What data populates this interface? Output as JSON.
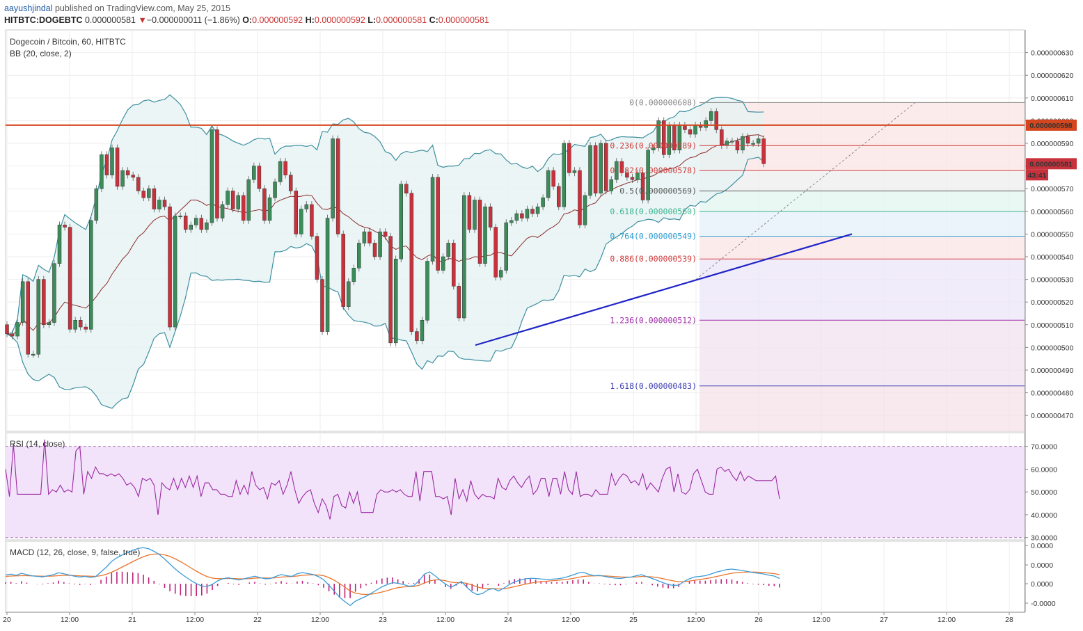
{
  "header": {
    "publisher": "aayushjindal",
    "published_text": "published on TradingView.com, May 25, 2015",
    "symbol": "HITBTC:DOGEBTC",
    "last": "0.000000581",
    "change_arrow": "▼",
    "change": "−0.000000011 (−1.86%)",
    "o_label": "O:",
    "o_value": "0.000000592",
    "h_label": "H:",
    "h_value": "0.000000592",
    "l_label": "L:",
    "l_value": "0.000000581",
    "c_label": "C:",
    "c_value": "0.000000581"
  },
  "chart_title": "Dogecoin / Bitcoin, 60, HITBTC",
  "bb_label": "BB (20, close, 2)",
  "rsi_label": "RSI (14, close)",
  "macd_label": "MACD (12, 26, close, 9, false, true)",
  "colors": {
    "up": "#3c8c5a",
    "down": "#c8323c",
    "bb": "#3d8fa0",
    "bb_fill": "#e6f3f3",
    "basis": "#8b2a2a",
    "resistance": "#d4461e",
    "trend": "#1f24c8",
    "rsi": "#9b2aa0",
    "rsi_band": "#f2e3fb",
    "macd": "#3a9ad8",
    "signal": "#e8732b",
    "hist": "#c0207a"
  },
  "chart_data": [
    {
      "type": "candlestick",
      "title": "Dogecoin / Bitcoin, 60, HITBTC",
      "y_ticks": [
        "0.000000470",
        "0.000000480",
        "0.000000490",
        "0.000000500",
        "0.000000510",
        "0.000000520",
        "0.000000530",
        "0.000000540",
        "0.000000550",
        "0.000000560",
        "0.000000570",
        "0.000000580",
        "0.000000590",
        "0.000000600",
        "0.000000610",
        "0.000000620",
        "0.000000630"
      ],
      "ylim": [
        4.63e-07,
        6.4e-07
      ],
      "x_ticks": [
        "20",
        "12:00",
        "21",
        "12:00",
        "22",
        "12:00",
        "23",
        "12:00",
        "24",
        "12:00",
        "25",
        "12:00",
        "26",
        "12:00",
        "27",
        "12:00",
        "28"
      ],
      "price_tags": [
        {
          "label": "0.000000598",
          "value": 5.98e-07,
          "color": "#d4461e"
        },
        {
          "label": "0.000000581",
          "value": 5.81e-07,
          "color": "#c8323c"
        },
        {
          "label": "43:41",
          "color": "#c8323c"
        }
      ],
      "resistance": 5.98e-07,
      "trendline": {
        "start": [
          "23 10:00",
          5.01e-07
        ],
        "end": [
          "26 09:00",
          5.5e-07
        ]
      },
      "fibonacci": [
        {
          "label": "0(0.000000608)",
          "value": 6.08e-07,
          "color": "#888888"
        },
        {
          "label": "0.236(0.000000589)",
          "value": 5.89e-07,
          "color": "#d23c3c"
        },
        {
          "label": "0.382(0.000000578)",
          "value": 5.78e-07,
          "color": "#d23c3c"
        },
        {
          "label": "0.5(0.000000569)",
          "value": 5.69e-07,
          "color": "#555555"
        },
        {
          "label": "0.618(0.000000560)",
          "value": 5.6e-07,
          "color": "#3cb48c"
        },
        {
          "label": "0.764(0.000000549)",
          "value": 5.49e-07,
          "color": "#2a9ad0"
        },
        {
          "label": "0.886(0.000000539)",
          "value": 5.39e-07,
          "color": "#d23c3c"
        },
        {
          "label": "1.236(0.000000512)",
          "value": 5.12e-07,
          "color": "#a030a8"
        },
        {
          "label": "1.618(0.000000483)",
          "value": 4.83e-07,
          "color": "#3c3cb4"
        }
      ],
      "closes": [
        5.06e-07,
        5.05e-07,
        5.11e-07,
        5.29e-07,
        4.97e-07,
        4.97e-07,
        5.3e-07,
        5.1e-07,
        5.11e-07,
        5.37e-07,
        5.54e-07,
        5.53e-07,
        5.08e-07,
        5.12e-07,
        5.09e-07,
        5.08e-07,
        5.56e-07,
        5.7e-07,
        5.85e-07,
        5.76e-07,
        5.88e-07,
        5.71e-07,
        5.78e-07,
        5.76e-07,
        5.75e-07,
        5.69e-07,
        5.66e-07,
        5.7e-07,
        5.61e-07,
        5.65e-07,
        5.62e-07,
        5.09e-07,
        5.58e-07,
        5.58e-07,
        5.52e-07,
        5.54e-07,
        5.57e-07,
        5.52e-07,
        5.55e-07,
        5.96e-07,
        5.57e-07,
        5.63e-07,
        5.69e-07,
        5.61e-07,
        5.67e-07,
        5.56e-07,
        5.74e-07,
        5.8e-07,
        5.7e-07,
        5.56e-07,
        5.66e-07,
        5.73e-07,
        5.82e-07,
        5.76e-07,
        5.69e-07,
        5.5e-07,
        5.61e-07,
        5.63e-07,
        5.49e-07,
        5.3e-07,
        5.07e-07,
        5.57e-07,
        5.92e-07,
        5.5e-07,
        5.18e-07,
        5.29e-07,
        5.35e-07,
        5.46e-07,
        5.51e-07,
        5.46e-07,
        5.4e-07,
        5.51e-07,
        5.49e-07,
        5.02e-07,
        5.39e-07,
        5.72e-07,
        5.68e-07,
        5.07e-07,
        5.03e-07,
        5.12e-07,
        5.38e-07,
        5.75e-07,
        5.34e-07,
        5.4e-07,
        5.46e-07,
        5.27e-07,
        5.13e-07,
        5.67e-07,
        5.52e-07,
        5.65e-07,
        5.37e-07,
        5.62e-07,
        5.53e-07,
        5.31e-07,
        5.34e-07,
        5.55e-07,
        5.56e-07,
        5.59e-07,
        5.57e-07,
        5.61e-07,
        5.59e-07,
        5.62e-07,
        5.66e-07,
        5.78e-07,
        5.71e-07,
        5.62e-07,
        5.9e-07,
        5.77e-07,
        5.78e-07,
        5.54e-07,
        5.67e-07,
        5.89e-07,
        5.68e-07,
        5.9e-07,
        5.69e-07,
        5.74e-07,
        5.82e-07,
        5.77e-07,
        5.75e-07,
        5.74e-07,
        5.77e-07,
        5.65e-07,
        5.87e-07,
        5.88e-07,
        6e-07,
        5.85e-07,
        5.98e-07,
        5.87e-07,
        5.98e-07,
        5.96e-07,
        5.94e-07,
        5.98e-07,
        5.97e-07,
        6e-07,
        6.04e-07,
        5.96e-07,
        5.89e-07,
        5.91e-07,
        5.91e-07,
        5.87e-07,
        5.93e-07,
        5.9e-07,
        5.9e-07,
        5.92e-07,
        5.81e-07
      ],
      "opens": [
        5.1e-07,
        5.06e-07,
        5.05e-07,
        5.11e-07,
        5.29e-07,
        4.97e-07,
        4.97e-07,
        5.3e-07,
        5.1e-07,
        5.11e-07,
        5.37e-07,
        5.54e-07,
        5.53e-07,
        5.08e-07,
        5.12e-07,
        5.09e-07,
        5.08e-07,
        5.56e-07,
        5.7e-07,
        5.85e-07,
        5.76e-07,
        5.88e-07,
        5.71e-07,
        5.78e-07,
        5.76e-07,
        5.75e-07,
        5.69e-07,
        5.66e-07,
        5.7e-07,
        5.61e-07,
        5.65e-07,
        5.62e-07,
        5.09e-07,
        5.58e-07,
        5.58e-07,
        5.52e-07,
        5.54e-07,
        5.57e-07,
        5.52e-07,
        5.55e-07,
        5.96e-07,
        5.57e-07,
        5.63e-07,
        5.69e-07,
        5.61e-07,
        5.67e-07,
        5.56e-07,
        5.74e-07,
        5.8e-07,
        5.7e-07,
        5.56e-07,
        5.66e-07,
        5.73e-07,
        5.82e-07,
        5.76e-07,
        5.69e-07,
        5.5e-07,
        5.61e-07,
        5.63e-07,
        5.49e-07,
        5.3e-07,
        5.07e-07,
        5.57e-07,
        5.92e-07,
        5.5e-07,
        5.18e-07,
        5.29e-07,
        5.35e-07,
        5.46e-07,
        5.51e-07,
        5.46e-07,
        5.4e-07,
        5.51e-07,
        5.49e-07,
        5.02e-07,
        5.39e-07,
        5.72e-07,
        5.68e-07,
        5.07e-07,
        5.03e-07,
        5.12e-07,
        5.38e-07,
        5.75e-07,
        5.34e-07,
        5.4e-07,
        5.46e-07,
        5.27e-07,
        5.13e-07,
        5.67e-07,
        5.52e-07,
        5.65e-07,
        5.37e-07,
        5.62e-07,
        5.53e-07,
        5.31e-07,
        5.34e-07,
        5.55e-07,
        5.56e-07,
        5.59e-07,
        5.57e-07,
        5.61e-07,
        5.59e-07,
        5.62e-07,
        5.66e-07,
        5.78e-07,
        5.71e-07,
        5.62e-07,
        5.9e-07,
        5.77e-07,
        5.78e-07,
        5.54e-07,
        5.67e-07,
        5.89e-07,
        5.68e-07,
        5.9e-07,
        5.69e-07,
        5.74e-07,
        5.82e-07,
        5.77e-07,
        5.75e-07,
        5.74e-07,
        5.77e-07,
        5.65e-07,
        5.87e-07,
        5.88e-07,
        6e-07,
        5.85e-07,
        5.98e-07,
        5.87e-07,
        5.98e-07,
        5.96e-07,
        5.94e-07,
        5.98e-07,
        5.97e-07,
        6e-07,
        6.04e-07,
        5.96e-07,
        5.89e-07,
        5.91e-07,
        5.91e-07,
        5.87e-07,
        5.93e-07,
        5.9e-07,
        5.9e-07,
        5.92e-07
      ]
    },
    {
      "type": "line",
      "title": "RSI (14, close)",
      "y_ticks": [
        "30.0000",
        "40.0000",
        "50.0000",
        "60.0000",
        "70.0000"
      ],
      "ylim": [
        29,
        76
      ],
      "bands": [
        30,
        70
      ],
      "values": [
        60,
        48,
        71,
        49,
        49,
        49,
        49,
        49,
        49,
        49,
        73,
        49,
        51,
        50,
        53,
        50,
        51,
        50,
        68,
        70,
        49,
        59,
        56,
        61,
        58,
        58,
        57,
        58,
        57,
        58,
        56,
        53,
        54,
        52,
        48,
        56,
        55,
        56,
        53,
        40,
        54,
        52,
        51,
        56,
        51,
        56,
        52,
        57,
        52,
        57,
        48,
        54,
        54,
        51,
        51,
        49,
        49,
        48,
        48,
        55,
        49,
        53,
        49,
        59,
        53,
        51,
        52,
        47,
        54,
        53,
        55,
        49,
        53,
        59,
        51,
        45,
        48,
        50,
        51,
        45,
        41,
        47,
        44,
        38,
        48,
        49,
        44,
        43,
        50,
        45,
        50,
        41,
        41,
        41,
        41,
        49,
        51,
        50,
        50,
        51,
        50,
        51,
        49,
        48,
        48,
        59,
        46,
        59,
        59,
        59,
        48,
        48,
        47,
        48,
        40,
        56,
        47,
        51,
        46,
        55,
        49,
        47,
        49,
        48,
        48,
        47,
        56,
        52,
        51,
        55,
        57,
        54,
        52,
        55,
        57,
        49,
        51,
        56,
        56,
        48,
        56,
        56,
        49,
        59,
        51,
        49,
        59,
        48,
        49,
        49,
        48,
        51,
        49,
        49,
        49,
        58,
        53,
        56,
        58,
        57,
        54,
        55,
        53,
        58,
        51,
        54,
        52,
        50,
        56,
        60,
        61,
        50,
        58,
        50,
        49,
        51,
        58,
        60,
        55,
        50,
        49,
        49,
        60,
        61,
        59,
        60,
        57,
        55,
        59,
        55,
        57,
        56,
        55,
        55,
        55,
        55,
        55,
        57,
        47
      ]
    },
    {
      "type": "line",
      "title": "MACD (12, 26, close, 9, false, true)",
      "y_ticks": [
        "-0.0000",
        "0.0000",
        "0.0000",
        "0.0000",
        "0.0000"
      ],
      "series": [
        {
          "kind": "macd",
          "values": [
            5.0,
            5.5,
            4.8,
            6.0,
            5.2,
            4.5,
            4.2,
            3.9,
            4.6,
            5.1,
            6.3,
            5.7,
            5.0,
            4.3,
            3.8,
            4.2,
            3.6,
            4.1,
            6.8,
            9.5,
            12.8,
            14.9,
            16.5,
            17.8,
            19.2,
            20.3,
            20.7,
            20.1,
            18.6,
            16.8,
            14.2,
            11.3,
            8.5,
            6.0,
            3.8,
            1.8,
            0.0,
            -1.3,
            -1.6,
            -0.4,
            1.6,
            2.9,
            3.4,
            2.7,
            2.1,
            2.8,
            3.6,
            4.3,
            3.5,
            2.8,
            3.0,
            4.2,
            5.3,
            4.6,
            4.2,
            5.7,
            6.4,
            5.8,
            5.3,
            4.1,
            2.3,
            -0.9,
            -4.3,
            -7.8,
            -10.3,
            -12.5,
            -10.0,
            -8.6,
            -7.2,
            -5.5,
            -3.6,
            -1.8,
            -0.5,
            0.6,
            0.2,
            -0.4,
            -1.4,
            -1.2,
            1.7,
            5.5,
            6.8,
            4.6,
            2.0,
            -0.2,
            -2.1,
            -0.5,
            1.3,
            -2.0,
            -4.8,
            -6.3,
            -5.6,
            -3.5,
            -2.8,
            -4.2,
            -2.6,
            -0.5,
            1.0,
            2.0,
            2.8,
            3.1,
            3.0,
            2.7,
            2.5,
            2.6,
            2.8,
            3.2,
            4.0,
            5.0,
            6.1,
            6.6,
            5.4,
            4.6,
            4.8,
            4.2,
            3.6,
            3.2,
            3.0,
            3.5,
            3.8,
            4.6,
            5.2,
            4.0,
            3.0,
            1.8,
            0.6,
            -0.5,
            -1.0,
            -0.8,
            1.3,
            2.8,
            3.9,
            4.2,
            4.6,
            5.5,
            6.6,
            7.3,
            8.1,
            8.4,
            8.0,
            7.6,
            7.0,
            6.4,
            6.0,
            5.6,
            4.9,
            4.4,
            3.0
          ]
        },
        {
          "kind": "signal",
          "values": [
            4.2,
            4.4,
            4.5,
            4.6,
            4.6,
            4.5,
            4.4,
            4.3,
            4.3,
            4.4,
            4.6,
            4.8,
            4.8,
            4.7,
            4.5,
            4.4,
            4.3,
            4.2,
            4.6,
            5.4,
            6.6,
            8.0,
            9.6,
            11.1,
            12.7,
            14.2,
            15.5,
            16.5,
            17.0,
            17.1,
            16.6,
            15.7,
            14.3,
            12.7,
            10.9,
            9.0,
            7.2,
            5.5,
            4.1,
            3.2,
            2.9,
            2.9,
            3.0,
            3.0,
            2.8,
            2.8,
            2.9,
            3.2,
            3.3,
            3.3,
            3.2,
            3.4,
            3.8,
            4.0,
            4.1,
            4.4,
            4.8,
            5.0,
            5.1,
            5.0,
            4.6,
            3.5,
            2.0,
            0.1,
            -2.0,
            -4.2,
            -5.4,
            -6.0,
            -6.2,
            -6.0,
            -5.5,
            -4.8,
            -4.0,
            -3.0,
            -2.3,
            -1.9,
            -1.7,
            -1.6,
            -0.9,
            0.4,
            1.6,
            2.2,
            2.2,
            1.7,
            0.9,
            0.6,
            0.7,
            0.2,
            -0.8,
            -1.9,
            -2.6,
            -2.8,
            -2.8,
            -3.0,
            -2.9,
            -2.4,
            -1.7,
            -1.0,
            -0.3,
            0.3,
            0.8,
            1.2,
            1.4,
            1.7,
            1.9,
            2.2,
            2.5,
            3.0,
            3.6,
            4.2,
            4.4,
            4.5,
            4.6,
            4.5,
            4.3,
            4.1,
            3.9,
            3.8,
            3.8,
            3.9,
            4.2,
            4.1,
            3.9,
            3.5,
            2.9,
            2.2,
            1.6,
            1.1,
            1.2,
            1.5,
            2.0,
            2.4,
            2.9,
            3.4,
            4.1,
            4.7,
            5.4,
            6.0,
            6.4,
            6.6,
            6.7,
            6.7,
            6.6,
            6.4,
            6.1,
            5.8,
            5.2
          ]
        },
        {
          "kind": "histogram",
          "values": [
            0.8,
            1.1,
            0.3,
            1.4,
            0.6,
            0.0,
            -0.2,
            -0.4,
            0.3,
            0.7,
            1.7,
            0.9,
            0.2,
            -0.4,
            -0.7,
            -0.2,
            -0.7,
            -0.1,
            2.2,
            4.1,
            6.2,
            6.9,
            6.9,
            6.7,
            6.5,
            6.1,
            5.2,
            3.6,
            1.6,
            -0.3,
            -2.4,
            -4.4,
            -5.8,
            -6.7,
            -7.1,
            -7.2,
            -7.2,
            -6.8,
            -5.7,
            -3.6,
            -1.3,
            0.0,
            0.4,
            -0.3,
            -0.7,
            0.0,
            0.7,
            1.1,
            0.2,
            -0.5,
            -0.2,
            0.8,
            1.5,
            0.6,
            0.1,
            1.3,
            1.6,
            0.8,
            0.2,
            -0.9,
            -2.3,
            -4.4,
            -6.3,
            -7.9,
            -8.3,
            -8.3,
            -4.6,
            -2.6,
            -1.0,
            0.5,
            1.9,
            3.0,
            3.5,
            3.6,
            2.5,
            1.5,
            0.3,
            0.4,
            2.6,
            5.1,
            5.2,
            2.4,
            -0.2,
            -1.9,
            -3.0,
            -1.1,
            0.6,
            -2.2,
            -4.0,
            -4.4,
            -3.0,
            -0.7,
            0.0,
            -1.2,
            0.3,
            1.9,
            2.7,
            3.0,
            3.1,
            2.8,
            2.2,
            1.5,
            1.1,
            0.9,
            0.9,
            1.0,
            1.5,
            2.0,
            2.5,
            2.4,
            1.0,
            0.1,
            0.2,
            -0.3,
            -0.7,
            -0.9,
            -0.9,
            -0.3,
            0.0,
            0.7,
            1.0,
            -0.1,
            -0.9,
            -1.7,
            -2.3,
            -2.7,
            -2.6,
            -1.9,
            0.1,
            1.3,
            1.9,
            1.8,
            1.7,
            2.1,
            2.5,
            2.6,
            2.7,
            2.4,
            1.6,
            1.0,
            0.3,
            -0.3,
            -0.6,
            -0.8,
            -1.2,
            -1.4,
            -2.2
          ]
        }
      ]
    }
  ]
}
